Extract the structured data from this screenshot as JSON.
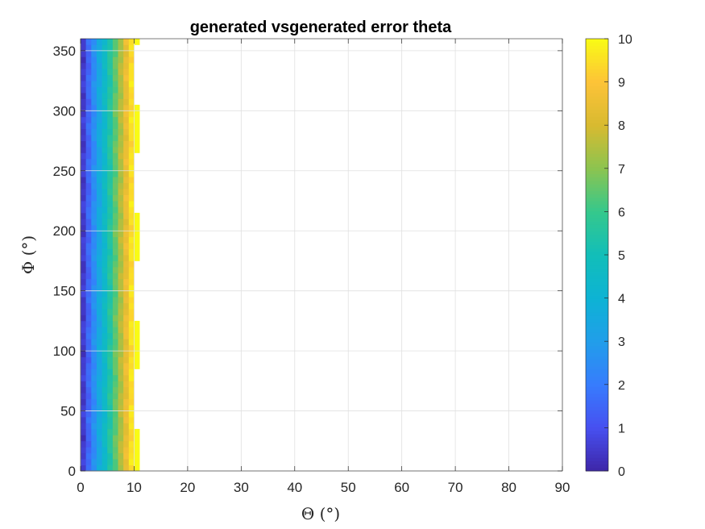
{
  "chart_data": {
    "type": "heatmap",
    "title": "generated vsgenerated error theta",
    "xlabel": "Θ (°)",
    "ylabel": "Φ (°)",
    "xlim": [
      0,
      90
    ],
    "ylim": [
      0,
      360
    ],
    "xticks": [
      "0",
      "10",
      "20",
      "30",
      "40",
      "50",
      "60",
      "70",
      "80",
      "90"
    ],
    "yticks": [
      "0",
      "50",
      "100",
      "150",
      "200",
      "250",
      "300",
      "350"
    ],
    "colorbar": {
      "range": [
        0,
        10
      ],
      "ticks": [
        "0",
        "1",
        "2",
        "3",
        "4",
        "5",
        "6",
        "7",
        "8",
        "9",
        "10"
      ],
      "colormap": "parula"
    },
    "grid": true,
    "x_bin_width": 1,
    "y_bin_width": 5,
    "valid_theta_edge_min": 10,
    "valid_theta_edge_max": 11,
    "value_model": "error ≈ theta (values 0–10); theta bins beyond ~10–11 are empty (white)"
  },
  "colors": {
    "background": "#ffffff",
    "grid": "#e0e0e0",
    "axis": "#262626",
    "empty": "#ffffff"
  }
}
